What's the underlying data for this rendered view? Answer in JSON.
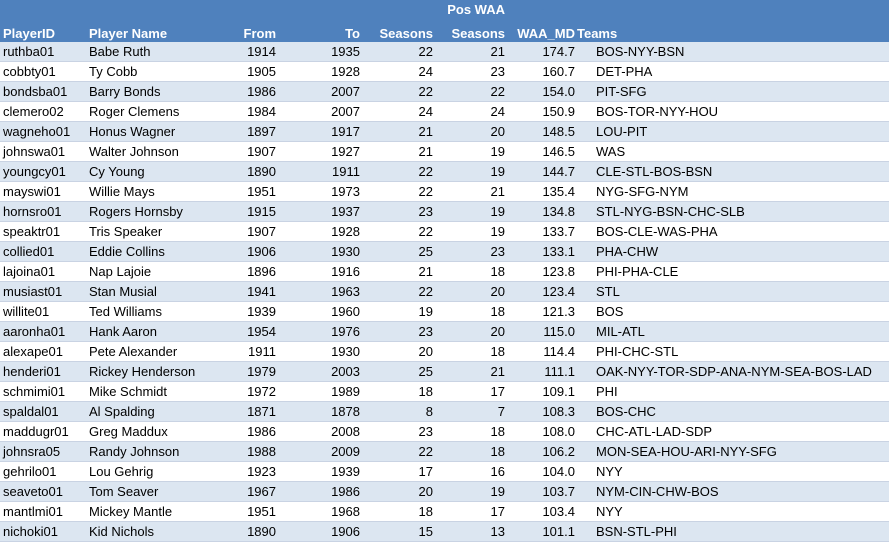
{
  "header": {
    "group_label": "Pos WAA",
    "columns": [
      "PlayerID",
      "Player Name",
      "From",
      "To",
      "Seasons",
      "Seasons",
      "WAA_MD",
      "Teams"
    ]
  },
  "rows": [
    [
      "ruthba01",
      "Babe Ruth",
      "1914",
      "1935",
      "22",
      "21",
      "174.7",
      "BOS-NYY-BSN"
    ],
    [
      "cobbty01",
      "Ty Cobb",
      "1905",
      "1928",
      "24",
      "23",
      "160.7",
      "DET-PHA"
    ],
    [
      "bondsba01",
      "Barry Bonds",
      "1986",
      "2007",
      "22",
      "22",
      "154.0",
      "PIT-SFG"
    ],
    [
      "clemero02",
      "Roger Clemens",
      "1984",
      "2007",
      "24",
      "24",
      "150.9",
      "BOS-TOR-NYY-HOU"
    ],
    [
      "wagneho01",
      "Honus Wagner",
      "1897",
      "1917",
      "21",
      "20",
      "148.5",
      "LOU-PIT"
    ],
    [
      "johnswa01",
      "Walter Johnson",
      "1907",
      "1927",
      "21",
      "19",
      "146.5",
      "WAS"
    ],
    [
      "youngcy01",
      "Cy Young",
      "1890",
      "1911",
      "22",
      "19",
      "144.7",
      "CLE-STL-BOS-BSN"
    ],
    [
      "mayswi01",
      "Willie Mays",
      "1951",
      "1973",
      "22",
      "21",
      "135.4",
      "NYG-SFG-NYM"
    ],
    [
      "hornsro01",
      "Rogers Hornsby",
      "1915",
      "1937",
      "23",
      "19",
      "134.8",
      "STL-NYG-BSN-CHC-SLB"
    ],
    [
      "speaktr01",
      "Tris Speaker",
      "1907",
      "1928",
      "22",
      "19",
      "133.7",
      "BOS-CLE-WAS-PHA"
    ],
    [
      "collied01",
      "Eddie Collins",
      "1906",
      "1930",
      "25",
      "23",
      "133.1",
      "PHA-CHW"
    ],
    [
      "lajoina01",
      "Nap Lajoie",
      "1896",
      "1916",
      "21",
      "18",
      "123.8",
      "PHI-PHA-CLE"
    ],
    [
      "musiast01",
      "Stan Musial",
      "1941",
      "1963",
      "22",
      "20",
      "123.4",
      "STL"
    ],
    [
      "willite01",
      "Ted Williams",
      "1939",
      "1960",
      "19",
      "18",
      "121.3",
      "BOS"
    ],
    [
      "aaronha01",
      "Hank Aaron",
      "1954",
      "1976",
      "23",
      "20",
      "115.0",
      "MIL-ATL"
    ],
    [
      "alexape01",
      "Pete Alexander",
      "1911",
      "1930",
      "20",
      "18",
      "114.4",
      "PHI-CHC-STL"
    ],
    [
      "henderi01",
      "Rickey Henderson",
      "1979",
      "2003",
      "25",
      "21",
      "111.1",
      "OAK-NYY-TOR-SDP-ANA-NYM-SEA-BOS-LAD"
    ],
    [
      "schmimi01",
      "Mike Schmidt",
      "1972",
      "1989",
      "18",
      "17",
      "109.1",
      "PHI"
    ],
    [
      "spaldal01",
      "Al Spalding",
      "1871",
      "1878",
      "8",
      "7",
      "108.3",
      "BOS-CHC"
    ],
    [
      "maddugr01",
      "Greg Maddux",
      "1986",
      "2008",
      "23",
      "18",
      "108.0",
      "CHC-ATL-LAD-SDP"
    ],
    [
      "johnsra05",
      "Randy Johnson",
      "1988",
      "2009",
      "22",
      "18",
      "106.2",
      "MON-SEA-HOU-ARI-NYY-SFG"
    ],
    [
      "gehrilo01",
      "Lou Gehrig",
      "1923",
      "1939",
      "17",
      "16",
      "104.0",
      "NYY"
    ],
    [
      "seaveto01",
      "Tom Seaver",
      "1967",
      "1986",
      "20",
      "19",
      "103.7",
      "NYM-CIN-CHW-BOS"
    ],
    [
      "mantlmi01",
      "Mickey Mantle",
      "1951",
      "1968",
      "18",
      "17",
      "103.4",
      "NYY"
    ],
    [
      "nichoki01",
      "Kid Nichols",
      "1890",
      "1906",
      "15",
      "13",
      "101.1",
      "BSN-STL-PHI"
    ]
  ]
}
